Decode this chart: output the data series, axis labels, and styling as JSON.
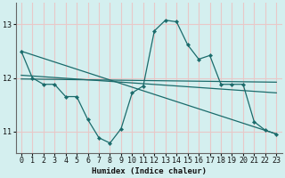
{
  "xlabel": "Humidex (Indice chaleur)",
  "background_color": "#d4efef",
  "grid_color": "#e8c8c8",
  "line_color": "#1a6b6b",
  "xlim": [
    -0.5,
    23.5
  ],
  "ylim": [
    10.6,
    13.4
  ],
  "yticks": [
    11,
    12,
    13
  ],
  "xticks": [
    0,
    1,
    2,
    3,
    4,
    5,
    6,
    7,
    8,
    9,
    10,
    11,
    12,
    13,
    14,
    15,
    16,
    17,
    18,
    19,
    20,
    21,
    22,
    23
  ],
  "main_x": [
    0,
    1,
    2,
    3,
    4,
    5,
    6,
    7,
    8,
    9,
    10,
    11,
    12,
    13,
    14,
    15,
    16,
    17,
    18,
    19,
    20,
    21,
    22,
    23
  ],
  "main_y": [
    12.5,
    12.0,
    11.88,
    11.88,
    11.65,
    11.65,
    11.22,
    10.88,
    10.78,
    11.05,
    11.72,
    11.85,
    12.88,
    13.08,
    13.05,
    12.62,
    12.35,
    12.42,
    11.88,
    11.88,
    11.88,
    11.18,
    11.02,
    10.95
  ],
  "trend1_x": [
    0,
    23
  ],
  "trend1_y": [
    11.98,
    11.92
  ],
  "trend2_x": [
    0,
    23
  ],
  "trend2_y": [
    12.05,
    11.72
  ],
  "trend3_x": [
    0,
    23
  ],
  "trend3_y": [
    12.5,
    10.95
  ]
}
